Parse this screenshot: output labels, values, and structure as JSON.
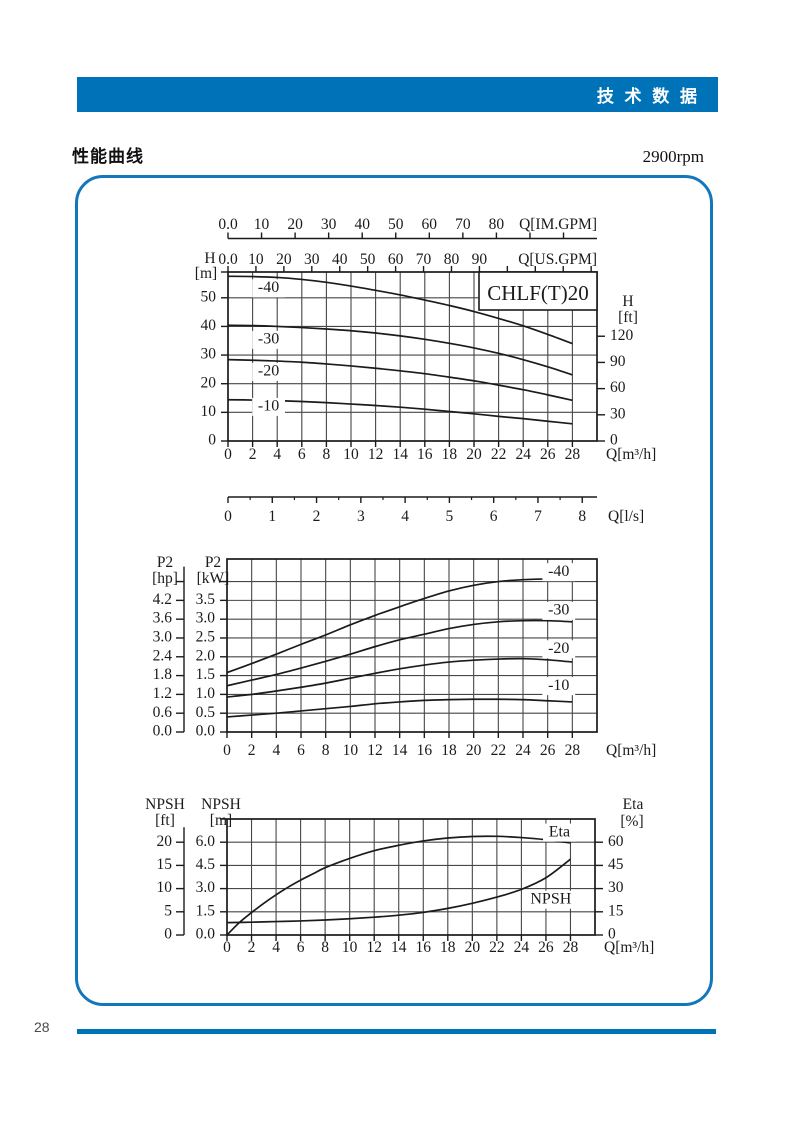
{
  "header": {
    "banner_text": "技 术 数 据",
    "section_title": "性能曲线",
    "speed": "2900rpm"
  },
  "footer": {
    "page_number": "28"
  },
  "colors": {
    "accent": "#0072b8",
    "panel_border": "#1577bb",
    "ink": "#1b1b1b",
    "grid": "#474747"
  },
  "chart_data": [
    {
      "id": "head",
      "type": "line",
      "title": "CHLF(T)20",
      "x_axis": {
        "unit_label": "Q[m³/h]",
        "range": [
          0,
          30
        ],
        "ticks": [
          0,
          2,
          4,
          6,
          8,
          10,
          12,
          14,
          16,
          18,
          20,
          22,
          24,
          26,
          28
        ],
        "tick_labels": [
          "0",
          "2",
          "4",
          "6",
          "8",
          "10",
          "12",
          "14",
          "16",
          "18",
          "20",
          "22",
          "24",
          "26",
          "28"
        ],
        "grid": [
          2,
          4,
          6,
          8,
          10,
          12,
          14,
          16,
          18,
          20,
          22,
          24,
          26,
          28
        ]
      },
      "x_top_axes": [
        {
          "unit_label": "Q[IM.GPM]",
          "gpm_per_m3h": 3.666,
          "tick_step": 10,
          "tick_max": 100,
          "tick_labels": [
            "0.0",
            "10",
            "20",
            "30",
            "40",
            "50",
            "60",
            "70",
            "80"
          ]
        },
        {
          "unit_label": "Q[US.GPM]",
          "gpm_per_m3h": 4.403,
          "tick_step": 10,
          "tick_max": 130,
          "tick_labels": [
            "0.0",
            "10",
            "20",
            "30",
            "40",
            "50",
            "60",
            "70",
            "80",
            "90"
          ]
        }
      ],
      "x_bottom_axis2": {
        "unit_label": "Q[l/s]",
        "m3h_per_unit": 3.6,
        "tick_labels": [
          "0",
          "1",
          "2",
          "3",
          "4",
          "5",
          "6",
          "7",
          "8"
        ]
      },
      "y_left": {
        "title_lines": [
          "H",
          "[m]"
        ],
        "range": [
          0,
          59
        ],
        "ticks": [
          0,
          10,
          20,
          30,
          40,
          50
        ],
        "tick_labels": [
          "0",
          "10",
          "20",
          "30",
          "40",
          "50"
        ],
        "grid": [
          10,
          20,
          30,
          40,
          50
        ],
        "top_tick": true
      },
      "y_right": {
        "title_lines": [
          "H",
          "[ft]"
        ],
        "ticks": [
          0,
          30,
          60,
          90,
          120
        ],
        "tick_labels": [
          "0",
          "30",
          "60",
          "90",
          "120"
        ],
        "left_units_per_unit": 0.3048
      },
      "series": [
        {
          "name": "-40",
          "points": [
            [
              0,
              57.5
            ],
            [
              2,
              57.4
            ],
            [
              4,
              57.1
            ],
            [
              6,
              56.4
            ],
            [
              8,
              55.4
            ],
            [
              10,
              54.1
            ],
            [
              12,
              52.6
            ],
            [
              14,
              51.0
            ],
            [
              16,
              49.2
            ],
            [
              18,
              47.3
            ],
            [
              20,
              45.2
            ],
            [
              22,
              42.8
            ],
            [
              24,
              40.2
            ],
            [
              26,
              37.2
            ],
            [
              28,
              34.0
            ]
          ]
        },
        {
          "name": "-30",
          "points": [
            [
              0,
              40.4
            ],
            [
              2,
              40.3
            ],
            [
              4,
              40.0
            ],
            [
              6,
              39.6
            ],
            [
              8,
              39.1
            ],
            [
              10,
              38.5
            ],
            [
              12,
              37.7
            ],
            [
              14,
              36.7
            ],
            [
              16,
              35.5
            ],
            [
              18,
              34.1
            ],
            [
              20,
              32.5
            ],
            [
              22,
              30.6
            ],
            [
              24,
              28.4
            ],
            [
              26,
              25.9
            ],
            [
              28,
              23.1
            ]
          ]
        },
        {
          "name": "-20",
          "points": [
            [
              0,
              28.4
            ],
            [
              2,
              28.2
            ],
            [
              4,
              27.9
            ],
            [
              6,
              27.5
            ],
            [
              8,
              26.9
            ],
            [
              10,
              26.2
            ],
            [
              12,
              25.4
            ],
            [
              14,
              24.5
            ],
            [
              16,
              23.5
            ],
            [
              18,
              22.3
            ],
            [
              20,
              21.0
            ],
            [
              22,
              19.5
            ],
            [
              24,
              17.9
            ],
            [
              26,
              16.1
            ],
            [
              28,
              14.2
            ]
          ]
        },
        {
          "name": "-10",
          "points": [
            [
              0,
              14.4
            ],
            [
              2,
              14.3
            ],
            [
              4,
              14.1
            ],
            [
              6,
              13.8
            ],
            [
              8,
              13.4
            ],
            [
              10,
              12.9
            ],
            [
              12,
              12.4
            ],
            [
              14,
              11.8
            ],
            [
              16,
              11.1
            ],
            [
              18,
              10.3
            ],
            [
              20,
              9.5
            ],
            [
              22,
              8.6
            ],
            [
              24,
              7.8
            ],
            [
              26,
              6.9
            ],
            [
              28,
              6.0
            ]
          ]
        }
      ],
      "series_labels": [
        {
          "text": "-40",
          "x": 3.3,
          "y": 53.3
        },
        {
          "text": "-30",
          "x": 3.3,
          "y": 35.3
        },
        {
          "text": "-20",
          "x": 3.3,
          "y": 24.1
        },
        {
          "text": "-10",
          "x": 3.3,
          "y": 11.9
        }
      ]
    },
    {
      "id": "power",
      "type": "line",
      "x_axis": {
        "unit_label": "Q[m³/h]",
        "range": [
          0,
          30
        ],
        "ticks": [
          0,
          2,
          4,
          6,
          8,
          10,
          12,
          14,
          16,
          18,
          20,
          22,
          24,
          26,
          28
        ],
        "tick_labels": [
          "0",
          "2",
          "4",
          "6",
          "8",
          "10",
          "12",
          "14",
          "16",
          "18",
          "20",
          "22",
          "24",
          "26",
          "28"
        ],
        "grid": [
          2,
          4,
          6,
          8,
          10,
          12,
          14,
          16,
          18,
          20,
          22,
          24,
          26,
          28
        ]
      },
      "y_left": {
        "title_lines": [
          "P2",
          "[kW]"
        ],
        "range": [
          0,
          4.6
        ],
        "ticks": [
          0,
          0.5,
          1,
          1.5,
          2,
          2.5,
          3,
          3.5,
          4
        ],
        "tick_labels": [
          "0.0",
          "0.5",
          "1.0",
          "1.5",
          "2.0",
          "2.5",
          "3.0",
          "3.5"
        ],
        "grid": [
          0.5,
          1,
          1.5,
          2,
          2.5,
          3,
          3.5,
          4
        ]
      },
      "y_left2": {
        "title_lines": [
          "P2",
          "[hp]"
        ],
        "ticks": [
          0,
          0.5,
          1,
          1.5,
          2,
          2.5,
          3,
          3.5,
          4
        ],
        "tick_labels": [
          "0.0",
          "0.6",
          "1.2",
          "1.8",
          "2.4",
          "3.0",
          "3.6",
          "4.2"
        ]
      },
      "series": [
        {
          "name": "-40",
          "points": [
            [
              0,
              1.58
            ],
            [
              2,
              1.82
            ],
            [
              4,
              2.07
            ],
            [
              6,
              2.33
            ],
            [
              8,
              2.58
            ],
            [
              10,
              2.85
            ],
            [
              12,
              3.1
            ],
            [
              14,
              3.33
            ],
            [
              16,
              3.55
            ],
            [
              18,
              3.75
            ],
            [
              20,
              3.9
            ],
            [
              22,
              4.0
            ],
            [
              24,
              4.05
            ],
            [
              26,
              4.07
            ],
            [
              28,
              4.06
            ]
          ]
        },
        {
          "name": "-30",
          "points": [
            [
              0,
              1.23
            ],
            [
              2,
              1.38
            ],
            [
              4,
              1.53
            ],
            [
              6,
              1.7
            ],
            [
              8,
              1.88
            ],
            [
              10,
              2.07
            ],
            [
              12,
              2.27
            ],
            [
              14,
              2.45
            ],
            [
              16,
              2.6
            ],
            [
              18,
              2.75
            ],
            [
              20,
              2.86
            ],
            [
              22,
              2.93
            ],
            [
              24,
              2.96
            ],
            [
              26,
              2.96
            ],
            [
              28,
              2.93
            ]
          ]
        },
        {
          "name": "-20",
          "points": [
            [
              0,
              0.93
            ],
            [
              2,
              1.0
            ],
            [
              4,
              1.09
            ],
            [
              6,
              1.19
            ],
            [
              8,
              1.3
            ],
            [
              10,
              1.43
            ],
            [
              12,
              1.56
            ],
            [
              14,
              1.68
            ],
            [
              16,
              1.78
            ],
            [
              18,
              1.86
            ],
            [
              20,
              1.91
            ],
            [
              22,
              1.94
            ],
            [
              24,
              1.95
            ],
            [
              26,
              1.92
            ],
            [
              28,
              1.86
            ]
          ]
        },
        {
          "name": "-10",
          "points": [
            [
              0,
              0.4
            ],
            [
              2,
              0.45
            ],
            [
              4,
              0.5
            ],
            [
              6,
              0.56
            ],
            [
              8,
              0.62
            ],
            [
              10,
              0.68
            ],
            [
              12,
              0.75
            ],
            [
              14,
              0.8
            ],
            [
              16,
              0.84
            ],
            [
              18,
              0.86
            ],
            [
              20,
              0.87
            ],
            [
              22,
              0.87
            ],
            [
              24,
              0.86
            ],
            [
              26,
              0.83
            ],
            [
              28,
              0.8
            ]
          ]
        }
      ],
      "series_labels": [
        {
          "text": "-40",
          "x": 26.9,
          "y": 4.25
        },
        {
          "text": "-30",
          "x": 26.9,
          "y": 3.22
        },
        {
          "text": "-20",
          "x": 26.9,
          "y": 2.2
        },
        {
          "text": "-10",
          "x": 26.9,
          "y": 1.22
        }
      ]
    },
    {
      "id": "npsh",
      "type": "line",
      "x_axis": {
        "unit_label": "Q[m³/h]",
        "range": [
          0,
          30
        ],
        "ticks": [
          0,
          2,
          4,
          6,
          8,
          10,
          12,
          14,
          16,
          18,
          20,
          22,
          24,
          26,
          28
        ],
        "tick_labels": [
          "0",
          "2",
          "4",
          "6",
          "8",
          "10",
          "12",
          "14",
          "16",
          "18",
          "20",
          "22",
          "24",
          "26",
          "28"
        ],
        "grid": [
          2,
          4,
          6,
          8,
          10,
          12,
          14,
          16,
          18,
          20,
          22,
          24,
          26,
          28
        ]
      },
      "y_left": {
        "title_lines": [
          "NPSH",
          "[m]"
        ],
        "range": [
          0,
          7.5
        ],
        "ticks": [
          0,
          1.5,
          3,
          4.5,
          6
        ],
        "tick_labels": [
          "0.0",
          "1.5",
          "3.0",
          "4.5",
          "6.0"
        ],
        "grid": [
          1.5,
          3,
          4.5,
          6
        ],
        "top_tick": true
      },
      "y_left2": {
        "title_lines": [
          "NPSH",
          "[ft]"
        ],
        "ticks": [
          0,
          1.5,
          3,
          4.5,
          6
        ],
        "tick_labels": [
          "0",
          "5",
          "10",
          "15",
          "20"
        ]
      },
      "y_right": {
        "title_lines": [
          "Eta",
          "[%]"
        ],
        "ticks": [
          0,
          15,
          30,
          45,
          60
        ],
        "tick_labels": [
          "0",
          "15",
          "30",
          "45",
          "60"
        ],
        "left_units_per_unit": 0.1
      },
      "series": [
        {
          "name": "Eta",
          "axis": "right",
          "points": [
            [
              0,
              0
            ],
            [
              1,
              8
            ],
            [
              2,
              14.5
            ],
            [
              3,
              20.5
            ],
            [
              4,
              26
            ],
            [
              5,
              31
            ],
            [
              6,
              35.5
            ],
            [
              7,
              39.5
            ],
            [
              8,
              43.5
            ],
            [
              10,
              49.5
            ],
            [
              12,
              54.5
            ],
            [
              14,
              58
            ],
            [
              16,
              60.8
            ],
            [
              18,
              62.7
            ],
            [
              20,
              63.7
            ],
            [
              22,
              63.8
            ],
            [
              24,
              63
            ],
            [
              26,
              61.6
            ],
            [
              28,
              59.5
            ]
          ]
        },
        {
          "name": "NPSH",
          "points": [
            [
              0,
              0.8
            ],
            [
              2,
              0.83
            ],
            [
              4,
              0.87
            ],
            [
              6,
              0.91
            ],
            [
              8,
              0.97
            ],
            [
              10,
              1.05
            ],
            [
              12,
              1.15
            ],
            [
              14,
              1.28
            ],
            [
              16,
              1.46
            ],
            [
              18,
              1.72
            ],
            [
              20,
              2.05
            ],
            [
              22,
              2.45
            ],
            [
              24,
              2.95
            ],
            [
              26,
              3.7
            ],
            [
              28,
              4.9
            ]
          ]
        }
      ],
      "series_labels": [
        {
          "text": "Eta",
          "x": 27.1,
          "y": 6.62
        },
        {
          "text": "NPSH",
          "x": 26.4,
          "y": 2.28
        }
      ]
    }
  ]
}
